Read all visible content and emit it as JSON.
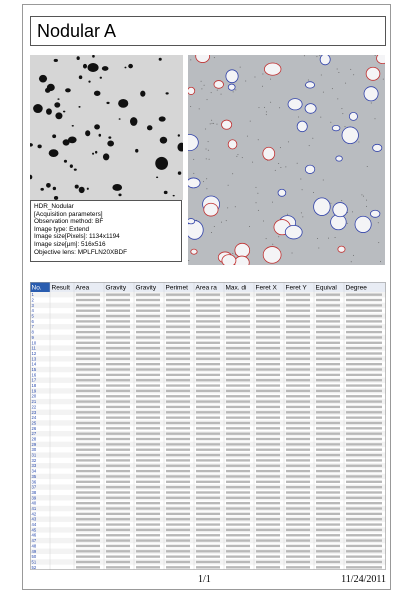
{
  "header": {
    "title": "Nodular A"
  },
  "info": {
    "lines": [
      "HDR_Nodular",
      "[Acquisition parameters]",
      "Observation method: BF",
      "Image type: Extend",
      "Image size[Pixels]: 1134x1194",
      "Image size[µm]: 516x516",
      "Objective lens: MPLFLN20XBDF"
    ]
  },
  "table": {
    "headers": [
      "No.",
      "Result",
      "Area",
      "Gravity",
      "Gravity",
      "Perimet",
      "Area ra",
      "Max. di",
      "Feret X",
      "Feret Y",
      "Equival",
      "Degree"
    ],
    "row_numbers": [
      1,
      2,
      3,
      4,
      5,
      6,
      7,
      8,
      9,
      10,
      11,
      12,
      13,
      14,
      15,
      16,
      17,
      18,
      19,
      20,
      21,
      22,
      23,
      24,
      25,
      26,
      27,
      28,
      29,
      30,
      31,
      32,
      33,
      34,
      35,
      36,
      37,
      38,
      39,
      40,
      41,
      42,
      43,
      44,
      45,
      46,
      47,
      48,
      49,
      50,
      51,
      52
    ]
  },
  "footer": {
    "page": "1/1",
    "date": "11/24/2011"
  }
}
